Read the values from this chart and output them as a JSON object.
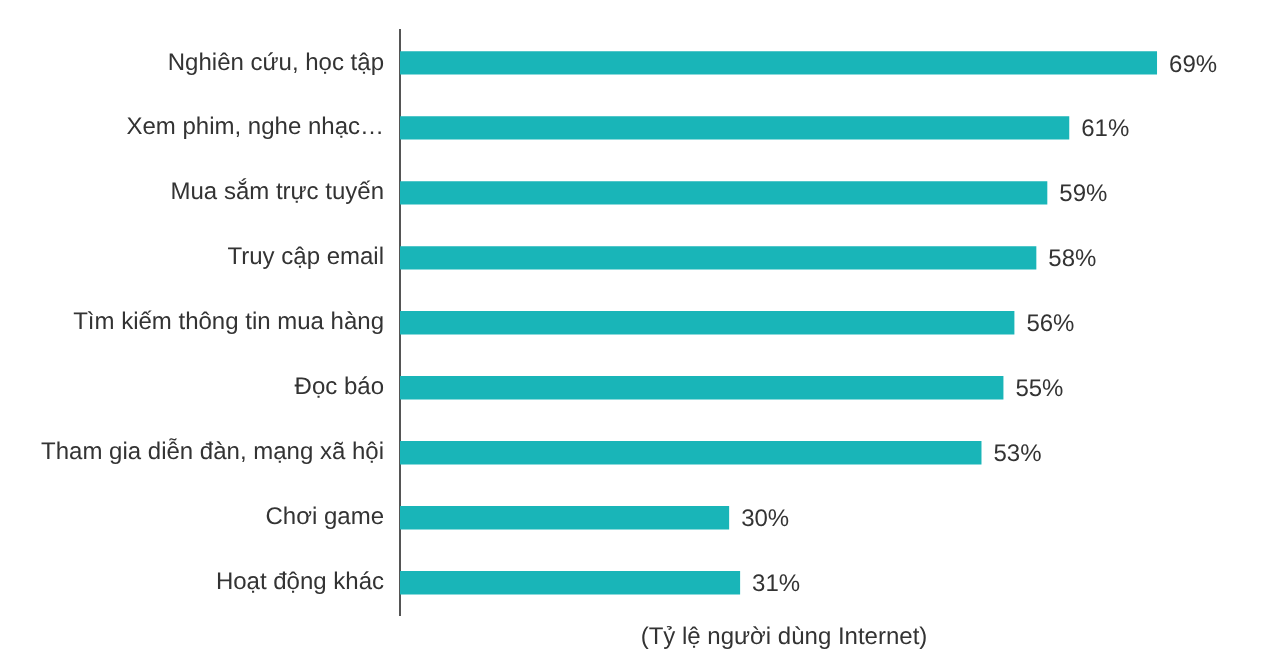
{
  "chart_data": {
    "type": "bar",
    "orientation": "horizontal",
    "xlabel": "(Tỷ lệ người dùng Internet)",
    "categories": [
      "Nghiên cứu, học tập",
      "Xem phim, nghe nhạc…",
      "Mua sắm trực tuyến",
      "Truy cập email",
      "Tìm kiếm thông tin mua hàng",
      "Đọc báo",
      "Tham gia diễn đàn, mạng xã hội",
      "Chơi game",
      "Hoạt động khác"
    ],
    "values": [
      69,
      61,
      59,
      58,
      56,
      55,
      53,
      30,
      31
    ],
    "value_labels": [
      "69%",
      "61%",
      "59%",
      "58%",
      "56%",
      "55%",
      "53%",
      "30%",
      "31%"
    ],
    "color": "#19b5b8",
    "tick_labels": "y",
    "grid": false,
    "legend": false
  }
}
